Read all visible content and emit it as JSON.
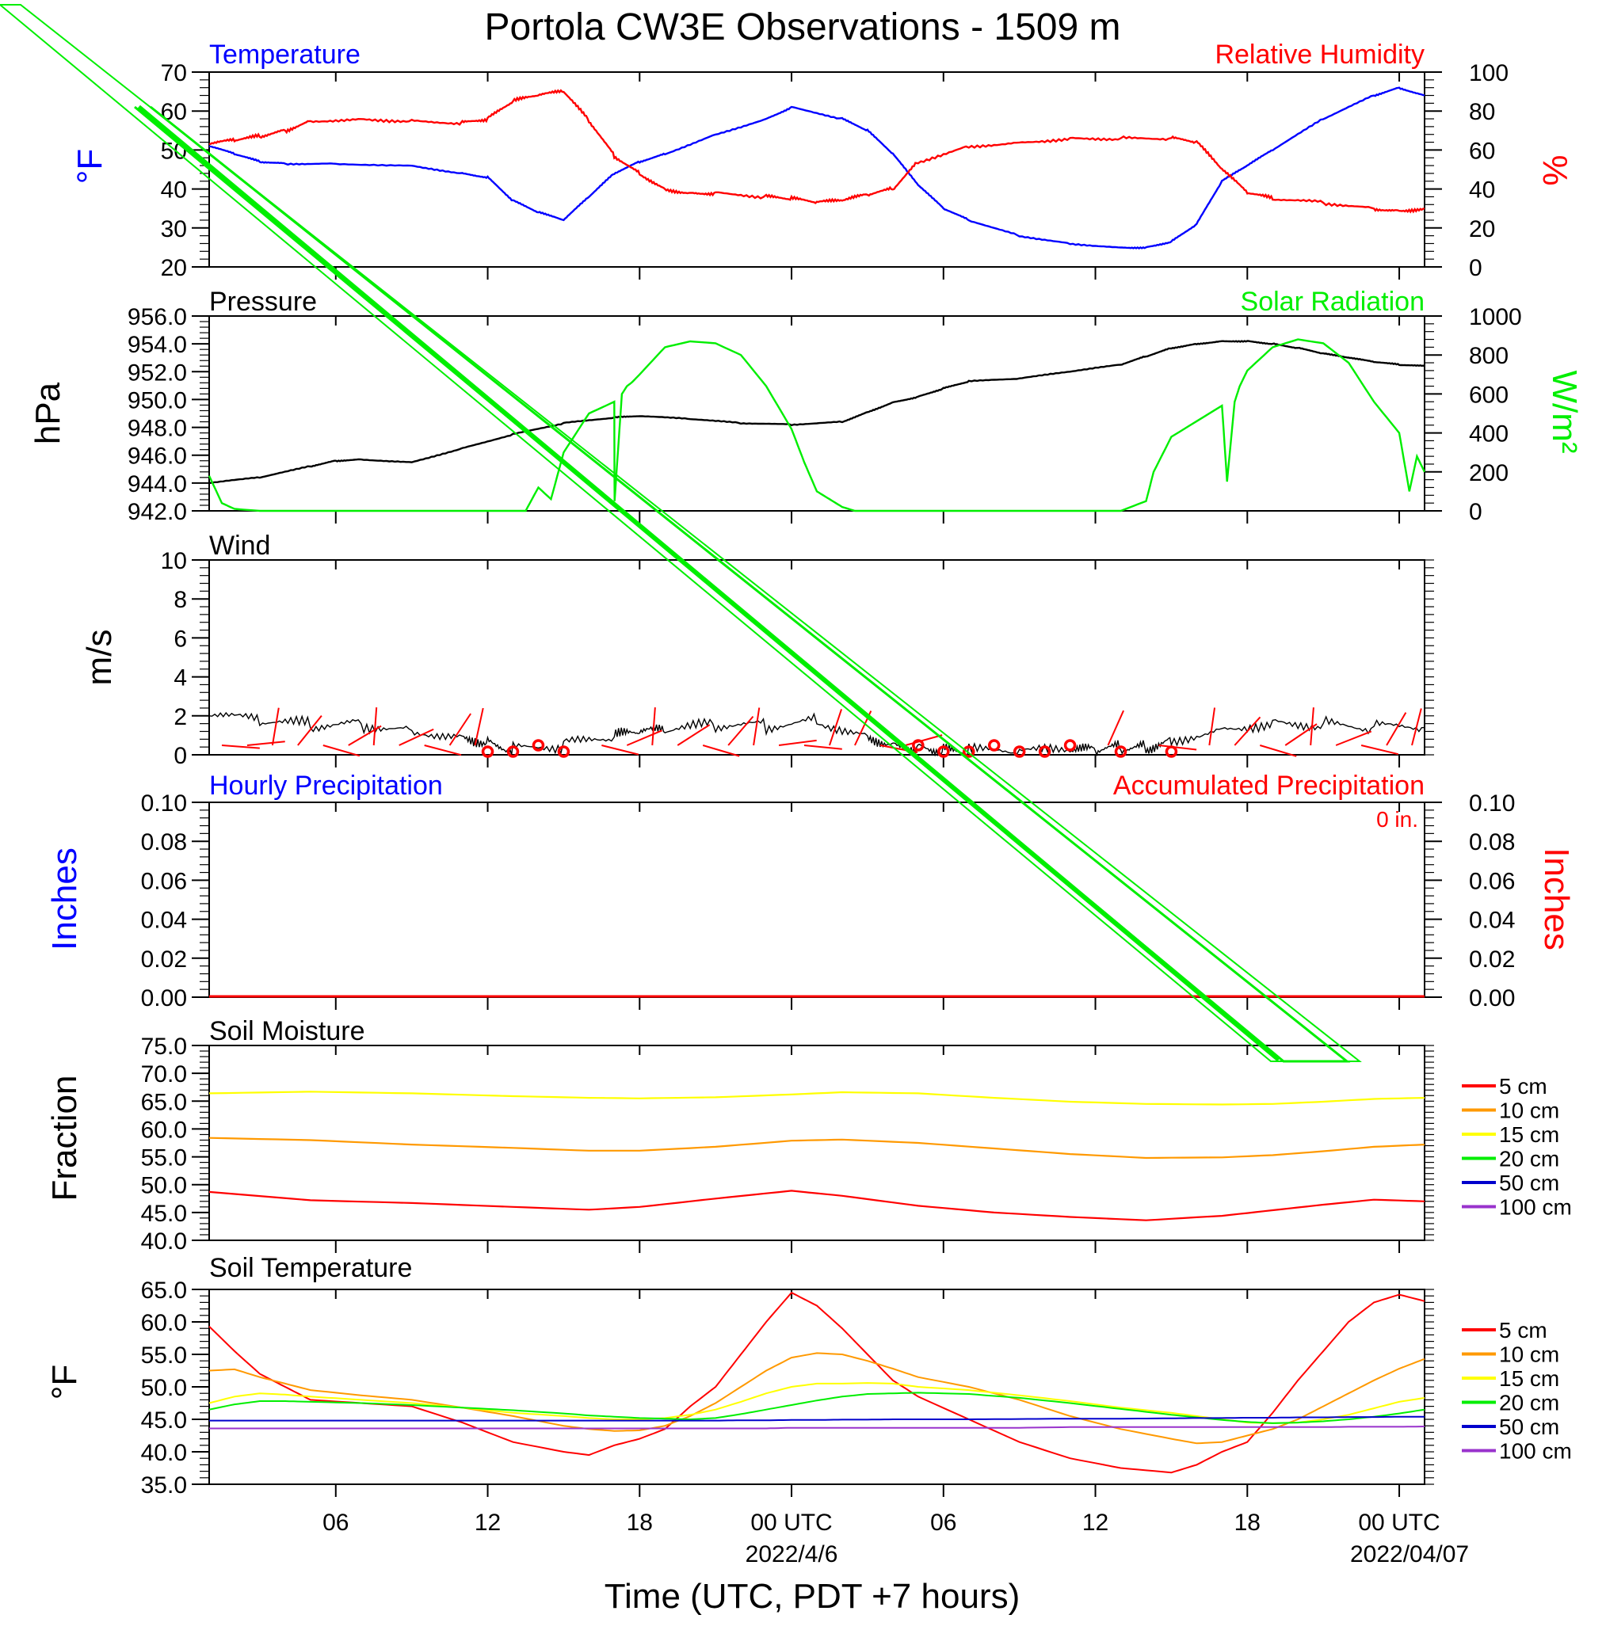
{
  "title": "Portola CW3E Observations - 1509 m",
  "x_axis": {
    "title": "Time (UTC, PDT +7 hours)",
    "ticks": [
      {
        "h": 5,
        "label": "06"
      },
      {
        "h": 11,
        "label": "12"
      },
      {
        "h": 17,
        "label": "18"
      },
      {
        "h": 23,
        "label": "00 UTC"
      },
      {
        "h": 29,
        "label": "06"
      },
      {
        "h": 35,
        "label": "12"
      },
      {
        "h": 41,
        "label": "18"
      },
      {
        "h": 47,
        "label": "00 UTC"
      }
    ],
    "dates": [
      {
        "h": 23,
        "label": "2022/4/6"
      },
      {
        "h": 47,
        "label": "2022/04/07"
      }
    ]
  },
  "panels": {
    "temp_rh": {
      "left_title": "Temperature",
      "right_title": "Relative Humidity",
      "left_axis_label": "°F",
      "right_axis_label": "%",
      "left_ticks": [
        "20",
        "30",
        "40",
        "50",
        "60",
        "70"
      ],
      "right_ticks": [
        "0",
        "20",
        "40",
        "60",
        "80",
        "100"
      ]
    },
    "pressure_solar": {
      "left_title": "Pressure",
      "right_title": "Solar Radiation",
      "left_axis_label": "hPa",
      "right_axis_label": "W/m²",
      "left_ticks": [
        "942.0",
        "944.0",
        "946.0",
        "948.0",
        "950.0",
        "952.0",
        "954.0",
        "956.0"
      ],
      "right_ticks": [
        "0",
        "200",
        "400",
        "600",
        "800",
        "1000"
      ]
    },
    "wind": {
      "left_title": "Wind",
      "left_axis_label": "m/s",
      "left_ticks": [
        "0",
        "2",
        "4",
        "6",
        "8",
        "10"
      ]
    },
    "precip": {
      "left_title": "Hourly Precipitation",
      "right_title": "Accumulated Precipitation",
      "accum_note": "0 in.",
      "left_axis_label": "Inches",
      "right_axis_label": "Inches",
      "left_ticks": [
        "0.00",
        "0.02",
        "0.04",
        "0.06",
        "0.08",
        "0.10"
      ],
      "right_ticks": [
        "0.00",
        "0.02",
        "0.04",
        "0.06",
        "0.08",
        "0.10"
      ]
    },
    "soil_moisture": {
      "left_title": "Soil Moisture",
      "left_axis_label": "Fraction",
      "left_ticks": [
        "40.0",
        "45.0",
        "50.0",
        "55.0",
        "60.0",
        "65.0",
        "70.0",
        "75.0"
      ]
    },
    "soil_temp": {
      "left_title": "Soil Temperature",
      "left_axis_label": "°F",
      "left_ticks": [
        "35.0",
        "40.0",
        "45.0",
        "50.0",
        "55.0",
        "60.0",
        "65.0"
      ]
    }
  },
  "legend": {
    "items": [
      {
        "label": "5 cm",
        "color": "#ff0000"
      },
      {
        "label": "10 cm",
        "color": "#ff9900"
      },
      {
        "label": "15 cm",
        "color": "#ffff00"
      },
      {
        "label": "20 cm",
        "color": "#00ee00"
      },
      {
        "label": "50 cm",
        "color": "#0000cc"
      },
      {
        "label": "100 cm",
        "color": "#9933cc"
      }
    ]
  },
  "colors": {
    "temperature": "#0000ff",
    "humidity": "#ff0000",
    "pressure": "#000000",
    "solar": "#00ee00",
    "wind": "#000000",
    "barbs": "#ff0000",
    "precip_left": "#0000ff",
    "precip_right": "#ff0000",
    "annotation": "#00ee00"
  },
  "chart_data": {
    "type": "line",
    "x_unit": "hours since 2022-04-05 01 UTC",
    "x_range": [
      0,
      48
    ],
    "temperature_F": {
      "ylim": [
        20,
        70
      ],
      "x": [
        0,
        1,
        2,
        3,
        5,
        8,
        10,
        11,
        12,
        13,
        14,
        15,
        16,
        17,
        18,
        20,
        22,
        23,
        25,
        26,
        27,
        28,
        29,
        30,
        32,
        34,
        36,
        37,
        38,
        39,
        40,
        41,
        42,
        44,
        46,
        47,
        48
      ],
      "y": [
        51,
        49,
        47,
        46.5,
        46.5,
        46,
        44,
        43,
        37,
        34,
        32,
        38,
        44,
        47,
        49,
        54,
        58,
        61,
        58,
        55,
        49,
        41,
        35,
        32,
        28,
        26,
        25,
        25,
        26.5,
        31,
        42,
        46,
        50,
        58,
        64,
        66,
        64
      ]
    },
    "relative_humidity_pct": {
      "ylim": [
        0,
        100
      ],
      "x": [
        0,
        1,
        2,
        3,
        4,
        6,
        8,
        10,
        11,
        12,
        13,
        14,
        15,
        16,
        17,
        18,
        19,
        20,
        22,
        23,
        24,
        25,
        26,
        27,
        28,
        30,
        32,
        34,
        36,
        38,
        39,
        40,
        41,
        42,
        44,
        46,
        47,
        48
      ],
      "y": [
        63,
        65,
        67,
        70,
        75,
        76,
        75,
        74,
        76,
        85,
        88,
        90,
        75,
        57,
        48,
        40,
        38,
        38,
        36,
        35,
        33,
        34,
        37,
        40,
        54,
        62,
        64,
        66,
        66,
        66,
        64,
        50,
        38,
        35,
        33,
        30,
        29,
        30
      ]
    },
    "pressure_hPa": {
      "ylim": [
        942,
        956
      ],
      "x": [
        0,
        2,
        4,
        5,
        6,
        8,
        10,
        12,
        14,
        16,
        17,
        19,
        21,
        23,
        25,
        26,
        27,
        28,
        29,
        30,
        32,
        34,
        36,
        37,
        38,
        39,
        40,
        41,
        42,
        43,
        44,
        45,
        46,
        47,
        48
      ],
      "y": [
        944,
        944.4,
        945.2,
        945.6,
        945.7,
        945.5,
        946.5,
        947.5,
        948.3,
        948.7,
        948.8,
        948.6,
        948.3,
        948.2,
        948.4,
        949.1,
        949.8,
        950.2,
        950.8,
        951.3,
        951.5,
        952.0,
        952.5,
        953.1,
        953.7,
        954.0,
        954.2,
        954.2,
        954.0,
        953.7,
        953.3,
        953.0,
        952.7,
        952.5,
        952.4
      ]
    },
    "solar_Wm2": {
      "ylim": [
        0,
        1000
      ],
      "x": [
        0,
        0.5,
        1,
        2,
        10,
        12.5,
        13,
        13.5,
        14,
        15,
        16,
        16.01,
        16.3,
        16.5,
        16.7,
        17,
        18,
        19,
        20,
        21,
        22,
        23,
        23.5,
        24,
        24.5,
        25,
        25.5,
        26,
        36,
        37,
        37.3,
        38,
        40,
        40.2,
        40.5,
        40.7,
        41,
        42,
        43,
        44,
        45,
        46,
        47,
        47.4,
        47.7,
        48
      ],
      "y": [
        180,
        40,
        10,
        0,
        0,
        0,
        120,
        60,
        300,
        500,
        560,
        50,
        600,
        640,
        660,
        700,
        840,
        870,
        860,
        800,
        640,
        420,
        250,
        100,
        60,
        20,
        0,
        0,
        0,
        50,
        200,
        380,
        540,
        150,
        560,
        640,
        720,
        840,
        880,
        860,
        760,
        560,
        400,
        100,
        280,
        200
      ]
    },
    "wind_ms": {
      "ylim": [
        0,
        10
      ],
      "x": [
        0,
        2,
        4,
        6,
        8,
        10,
        11,
        12,
        14,
        16,
        17,
        18,
        20,
        22,
        24,
        26,
        27,
        28,
        29,
        30,
        32,
        34,
        35,
        36,
        37,
        38,
        40,
        42,
        44,
        46,
        48
      ],
      "y": [
        2.0,
        1.7,
        1.5,
        1.6,
        1.3,
        1.0,
        0.7,
        0.3,
        0.5,
        0.9,
        1.1,
        1.2,
        1.5,
        1.5,
        1.8,
        1.0,
        0.6,
        0.4,
        0.2,
        0.15,
        0.1,
        0.15,
        0.2,
        0.35,
        0.4,
        0.8,
        1.4,
        1.7,
        1.6,
        1.4,
        1.4
      ]
    },
    "calm_hours": [
      11,
      12,
      13,
      14,
      28,
      29,
      30,
      31,
      32,
      33,
      34,
      36,
      38
    ],
    "hourly_precip_in": 0,
    "accumulated_precip_in": 0,
    "soil_moisture": {
      "ylim": [
        40,
        75
      ],
      "x": [
        0,
        4,
        8,
        12,
        15,
        17,
        20,
        23,
        25,
        28,
        31,
        34,
        37,
        40,
        42,
        44,
        46,
        48
      ],
      "series": [
        {
          "name": "5 cm",
          "y": [
            48.7,
            47.2,
            46.7,
            46.0,
            45.5,
            46.0,
            47.5,
            48.9,
            48.0,
            46.2,
            45.0,
            44.2,
            43.6,
            44.4,
            45.4,
            46.4,
            47.3,
            47.0
          ]
        },
        {
          "name": "10 cm",
          "y": [
            58.4,
            58.0,
            57.2,
            56.6,
            56.1,
            56.1,
            56.8,
            57.9,
            58.1,
            57.5,
            56.5,
            55.5,
            54.8,
            54.9,
            55.3,
            56.0,
            56.8,
            57.2
          ]
        },
        {
          "name": "15 cm",
          "y": [
            66.4,
            66.7,
            66.4,
            65.9,
            65.6,
            65.5,
            65.7,
            66.2,
            66.6,
            66.4,
            65.6,
            64.9,
            64.5,
            64.4,
            64.5,
            64.9,
            65.4,
            65.6
          ]
        }
      ]
    },
    "soil_temperature_F": {
      "ylim": [
        35,
        65
      ],
      "x": [
        0,
        1,
        2,
        3,
        4,
        6,
        8,
        10,
        12,
        14,
        15,
        16,
        17,
        18,
        19,
        20,
        21,
        22,
        23,
        24,
        25,
        26,
        27,
        28,
        30,
        32,
        34,
        36,
        38,
        39,
        40,
        41,
        42,
        43,
        44,
        45,
        46,
        47,
        48
      ],
      "series": [
        {
          "name": "5 cm",
          "y": [
            59.3,
            55.5,
            52.0,
            50.0,
            48.0,
            47.5,
            47.0,
            44.5,
            41.5,
            40.0,
            39.5,
            41.0,
            42.0,
            43.5,
            47.0,
            50.0,
            55.0,
            60.0,
            64.5,
            62.5,
            59.0,
            55.0,
            51.0,
            48.5,
            45.0,
            41.5,
            39.0,
            37.5,
            36.8,
            38.0,
            40.0,
            41.5,
            46.0,
            51.0,
            55.5,
            60.0,
            63.0,
            64.2,
            63.2
          ]
        },
        {
          "name": "10 cm",
          "y": [
            52.5,
            52.7,
            51.5,
            50.5,
            49.5,
            48.7,
            48.0,
            46.8,
            45.5,
            44.0,
            43.5,
            43.2,
            43.3,
            44.0,
            45.5,
            47.5,
            50.0,
            52.5,
            54.5,
            55.2,
            55.0,
            54.0,
            52.8,
            51.5,
            50.0,
            48.0,
            45.5,
            43.5,
            42.0,
            41.3,
            41.5,
            42.5,
            43.5,
            45.0,
            47.0,
            49.0,
            51.0,
            52.8,
            54.3
          ]
        },
        {
          "name": "15 cm",
          "y": [
            47.5,
            48.5,
            49.0,
            48.8,
            48.5,
            48.0,
            47.5,
            46.8,
            46.0,
            45.5,
            45.2,
            45.0,
            45.0,
            45.2,
            45.7,
            46.5,
            47.7,
            49.0,
            50.0,
            50.5,
            50.5,
            50.6,
            50.5,
            50.0,
            49.5,
            48.7,
            47.8,
            46.8,
            46.0,
            45.5,
            45.0,
            44.5,
            44.4,
            44.5,
            45.0,
            45.7,
            46.7,
            47.7,
            48.3
          ]
        },
        {
          "name": "20 cm",
          "y": [
            46.5,
            47.3,
            47.8,
            47.8,
            47.7,
            47.5,
            47.2,
            46.8,
            46.4,
            45.9,
            45.6,
            45.4,
            45.2,
            45.1,
            45.0,
            45.2,
            45.8,
            46.5,
            47.2,
            47.9,
            48.5,
            48.9,
            49.0,
            49.1,
            48.9,
            48.3,
            47.5,
            46.6,
            45.7,
            45.3,
            44.9,
            44.6,
            44.4,
            44.5,
            44.7,
            45.0,
            45.4,
            45.9,
            46.5
          ]
        },
        {
          "name": "50 cm",
          "y": [
            44.8,
            44.8,
            44.8,
            44.8,
            44.8,
            44.8,
            44.8,
            44.8,
            44.8,
            44.8,
            44.8,
            44.8,
            44.8,
            44.8,
            44.8,
            44.8,
            44.85,
            44.85,
            44.9,
            44.9,
            44.95,
            44.95,
            45.0,
            45.0,
            45.0,
            45.05,
            45.1,
            45.1,
            45.15,
            45.2,
            45.2,
            45.25,
            45.25,
            45.3,
            45.3,
            45.35,
            45.35,
            45.4,
            45.4
          ]
        },
        {
          "name": "100 cm",
          "y": [
            43.6,
            43.6,
            43.6,
            43.6,
            43.6,
            43.6,
            43.6,
            43.6,
            43.6,
            43.6,
            43.6,
            43.6,
            43.6,
            43.6,
            43.6,
            43.6,
            43.6,
            43.6,
            43.7,
            43.7,
            43.7,
            43.7,
            43.7,
            43.7,
            43.7,
            43.7,
            43.8,
            43.8,
            43.8,
            43.8,
            43.8,
            43.8,
            43.8,
            43.8,
            43.8,
            43.85,
            43.85,
            43.85,
            43.9
          ]
        }
      ]
    }
  }
}
